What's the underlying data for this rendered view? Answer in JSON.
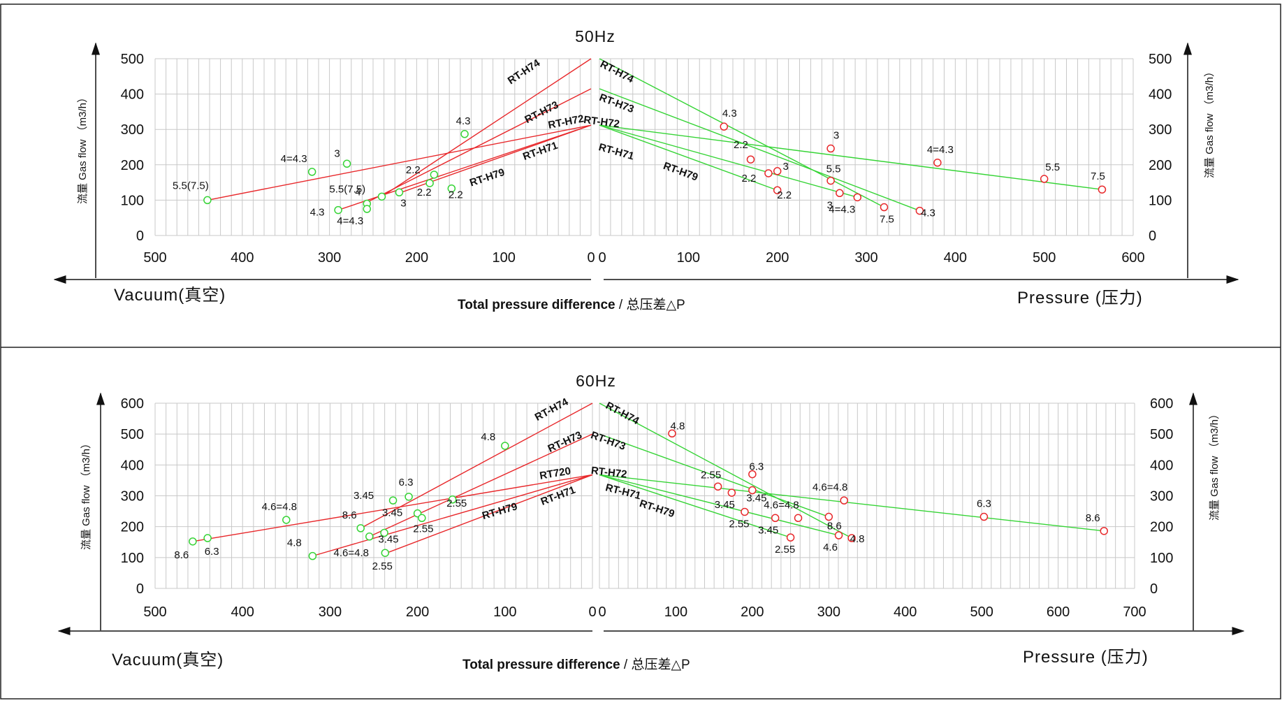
{
  "axis_text": {
    "ylabel": "流量 Gas flow （m3/h）",
    "vacuum": "Vacuum(真空)",
    "pressure": "Pressure (压力)",
    "total_bold": "Total pressure difference",
    "total_rest": " / 总压差△P"
  },
  "colors": {
    "vacuum": "#e8282b",
    "pressure": "#35d435",
    "marker_vac": "#36d436",
    "marker_pres": "#e8282b"
  },
  "chart_data": [
    {
      "type": "line",
      "title": "50Hz",
      "ylim": [
        0,
        500
      ],
      "yticks": [
        0,
        100,
        200,
        300,
        400,
        500
      ],
      "vacuum_ticks": [
        500,
        400,
        300,
        200,
        100,
        0
      ],
      "pressure_ticks": [
        0,
        100,
        200,
        300,
        400,
        500,
        600
      ],
      "vacuum_range": [
        500,
        0
      ],
      "pressure_range": [
        0,
        600
      ],
      "vacuum": {
        "lines": [
          {
            "name": "RT-H74",
            "points": [
              [
                0,
                500
              ],
              [
                240,
                110
              ]
            ],
            "label_at": [
              75,
              455
            ]
          },
          {
            "name": "RT-H73",
            "points": [
              [
                0,
                415
              ],
              [
                260,
                90
              ]
            ],
            "label_at": [
              55,
              340
            ]
          },
          {
            "name": "RT-H72",
            "points": [
              [
                0,
                312
              ],
              [
                440,
                100
              ]
            ],
            "label_at": [
              28,
              312
            ]
          },
          {
            "name": "RT-H71",
            "points": [
              [
                0,
                312
              ],
              [
                220,
                120
              ]
            ],
            "label_at": [
              57,
              230
            ]
          },
          {
            "name": "RT-H79",
            "points": [
              [
                0,
                312
              ],
              [
                290,
                72
              ]
            ],
            "label_at": [
              118,
              155
            ]
          }
        ],
        "points": [
          {
            "x": 440,
            "y": 100,
            "label": "5.5(7.5)",
            "dx": -24,
            "dy": -16
          },
          {
            "x": 320,
            "y": 180,
            "label": "4=4.3",
            "dx": -26,
            "dy": -14
          },
          {
            "x": 280,
            "y": 203,
            "label": "3",
            "dx": -14,
            "dy": -10
          },
          {
            "x": 145,
            "y": 287,
            "label": "4.3",
            "dx": -2,
            "dy": -14
          },
          {
            "x": 180,
            "y": 172,
            "label": "2.2",
            "dx": -30,
            "dy": -2
          },
          {
            "x": 257,
            "y": 90,
            "label": "5.5(7.5)",
            "dx": -28,
            "dy": -16
          },
          {
            "x": 240,
            "y": 110,
            "label": "4",
            "dx": -34,
            "dy": -2
          },
          {
            "x": 257,
            "y": 75,
            "label": "4=4.3",
            "dx": -24,
            "dy": 22
          },
          {
            "x": 290,
            "y": 72,
            "label": "4.3",
            "dx": -30,
            "dy": 8
          },
          {
            "x": 220,
            "y": 122,
            "label": "3",
            "dx": 6,
            "dy": 20
          },
          {
            "x": 185,
            "y": 148,
            "label": "2.2",
            "dx": -8,
            "dy": 18
          },
          {
            "x": 160,
            "y": 133,
            "label": "2.2",
            "dx": 6,
            "dy": 14
          }
        ]
      },
      "pressure": {
        "lines": [
          {
            "name": "RT-H74",
            "points": [
              [
                0,
                500
              ],
              [
                320,
                80
              ]
            ],
            "label_at": [
              18,
              455
            ]
          },
          {
            "name": "RT-H73",
            "points": [
              [
                0,
                415
              ],
              [
                360,
                70
              ]
            ],
            "label_at": [
              18,
              365
            ]
          },
          {
            "name": "RT-H72",
            "points": [
              [
                0,
                312
              ],
              [
                565,
                130
              ]
            ],
            "label_at": [
              2,
              312
            ]
          },
          {
            "name": "RT-H71",
            "points": [
              [
                0,
                312
              ],
              [
                290,
                108
              ]
            ],
            "label_at": [
              18,
              228
            ]
          },
          {
            "name": "RT-H79",
            "points": [
              [
                0,
                312
              ],
              [
                200,
                128
              ]
            ],
            "label_at": [
              90,
              172
            ]
          }
        ],
        "points": [
          {
            "x": 140,
            "y": 308,
            "label": "4.3",
            "dx": 8,
            "dy": -14
          },
          {
            "x": 260,
            "y": 246,
            "label": "3",
            "dx": 8,
            "dy": -14
          },
          {
            "x": 380,
            "y": 206,
            "label": "4=4.3",
            "dx": 4,
            "dy": -14
          },
          {
            "x": 500,
            "y": 160,
            "label": "5.5",
            "dx": 12,
            "dy": -12
          },
          {
            "x": 565,
            "y": 130,
            "label": "7.5",
            "dx": -6,
            "dy": -14
          },
          {
            "x": 170,
            "y": 215,
            "label": "2.2",
            "dx": -14,
            "dy": -16
          },
          {
            "x": 200,
            "y": 182,
            "label": "3",
            "dx": 12,
            "dy": -2
          },
          {
            "x": 190,
            "y": 176,
            "label": "2.2",
            "dx": -28,
            "dy": 12
          },
          {
            "x": 260,
            "y": 155,
            "label": "5.5",
            "dx": 4,
            "dy": -12
          },
          {
            "x": 200,
            "y": 128,
            "label": "2.2",
            "dx": 10,
            "dy": 12
          },
          {
            "x": 270,
            "y": 120,
            "label": "3",
            "dx": -14,
            "dy": 22
          },
          {
            "x": 290,
            "y": 108,
            "label": "4=4.3",
            "dx": -22,
            "dy": 22
          },
          {
            "x": 320,
            "y": 80,
            "label": "7.5",
            "dx": 4,
            "dy": 22
          },
          {
            "x": 360,
            "y": 70,
            "label": "4.3",
            "dx": 12,
            "dy": 8
          }
        ]
      }
    },
    {
      "type": "line",
      "title": "60Hz",
      "ylim": [
        0,
        600
      ],
      "yticks": [
        0,
        100,
        200,
        300,
        400,
        500,
        600
      ],
      "vacuum_ticks": [
        500,
        400,
        300,
        200,
        100,
        0
      ],
      "pressure_ticks": [
        0,
        100,
        200,
        300,
        400,
        500,
        600,
        700
      ],
      "vacuum_range": [
        500,
        0
      ],
      "pressure_range": [
        0,
        700
      ],
      "vacuum": {
        "lines": [
          {
            "name": "RT-H74",
            "points": [
              [
                0,
                600
              ],
              [
                265,
                195
              ]
            ],
            "label_at": [
              45,
              570
            ]
          },
          {
            "name": "RT-H73",
            "points": [
              [
                0,
                500
              ],
              [
                255,
                168
              ]
            ],
            "label_at": [
              30,
              465
            ]
          },
          {
            "name": "RT720",
            "points": [
              [
                0,
                368
              ],
              [
                457,
                152
              ]
            ],
            "label_at": [
              42,
              362
            ]
          },
          {
            "name": "RT-H71",
            "points": [
              [
                0,
                368
              ],
              [
                235,
                115
              ]
            ],
            "label_at": [
              38,
              290
            ]
          },
          {
            "name": "RT-H79",
            "points": [
              [
                0,
                368
              ],
              [
                320,
                105
              ]
            ],
            "label_at": [
              105,
              240
            ]
          }
        ],
        "points": [
          {
            "x": 457,
            "y": 152,
            "label": "8.6",
            "dx": -16,
            "dy": 24
          },
          {
            "x": 440,
            "y": 163,
            "label": "6.3",
            "dx": 6,
            "dy": 24
          },
          {
            "x": 350,
            "y": 222,
            "label": "4.6=4.8",
            "dx": -10,
            "dy": -14
          },
          {
            "x": 320,
            "y": 105,
            "label": "4.8",
            "dx": -26,
            "dy": -14
          },
          {
            "x": 100,
            "y": 462,
            "label": "4.8",
            "dx": -24,
            "dy": -8
          },
          {
            "x": 228,
            "y": 285,
            "label": "3.45",
            "dx": -42,
            "dy": -2
          },
          {
            "x": 210,
            "y": 297,
            "label": "6.3",
            "dx": -4,
            "dy": -16
          },
          {
            "x": 160,
            "y": 288,
            "label": "2.55",
            "dx": 6,
            "dy": 10
          },
          {
            "x": 265,
            "y": 195,
            "label": "8.6",
            "dx": -16,
            "dy": -14
          },
          {
            "x": 200,
            "y": 243,
            "label": "3.45",
            "dx": -36,
            "dy": 4
          },
          {
            "x": 195,
            "y": 228,
            "label": "2.55",
            "dx": 2,
            "dy": 20
          },
          {
            "x": 255,
            "y": 168,
            "label": "4.6=4.8",
            "dx": -26,
            "dy": 28
          },
          {
            "x": 238,
            "y": 180,
            "label": "3.45",
            "dx": 6,
            "dy": 14
          },
          {
            "x": 237,
            "y": 115,
            "label": "2.55",
            "dx": -4,
            "dy": 24
          }
        ]
      },
      "pressure": {
        "lines": [
          {
            "name": "RT-H74",
            "points": [
              [
                0,
                600
              ],
              [
                330,
                163
              ]
            ],
            "label_at": [
              28,
              558
            ]
          },
          {
            "name": "RT-H73",
            "points": [
              [
                0,
                500
              ],
              [
                300,
                232
              ]
            ],
            "label_at": [
              10,
              468
            ]
          },
          {
            "name": "RT-H72",
            "points": [
              [
                0,
                368
              ],
              [
                660,
                186
              ]
            ],
            "label_at": [
              12,
              365
            ]
          },
          {
            "name": "RT-H71",
            "points": [
              [
                0,
                368
              ],
              [
                313,
                172
              ]
            ],
            "label_at": [
              30,
              303
            ]
          },
          {
            "name": "RT-H79",
            "points": [
              [
                0,
                368
              ],
              [
                250,
                165
              ]
            ],
            "label_at": [
              74,
              248
            ]
          }
        ],
        "points": [
          {
            "x": 95,
            "y": 502,
            "label": "4.8",
            "dx": 8,
            "dy": -6
          },
          {
            "x": 200,
            "y": 370,
            "label": "6.3",
            "dx": 6,
            "dy": -6
          },
          {
            "x": 155,
            "y": 330,
            "label": "2.55",
            "dx": -10,
            "dy": -12
          },
          {
            "x": 173,
            "y": 310,
            "label": "3.45",
            "dx": -10,
            "dy": 22
          },
          {
            "x": 200,
            "y": 318,
            "label": "3.45",
            "dx": 6,
            "dy": 16
          },
          {
            "x": 320,
            "y": 285,
            "label": "4.6=4.8",
            "dx": -20,
            "dy": -14
          },
          {
            "x": 503,
            "y": 232,
            "label": "6.3",
            "dx": 0,
            "dy": -14
          },
          {
            "x": 660,
            "y": 186,
            "label": "8.6",
            "dx": -16,
            "dy": -14
          },
          {
            "x": 260,
            "y": 228,
            "label": "4.6=4.8",
            "dx": -24,
            "dy": -14
          },
          {
            "x": 300,
            "y": 232,
            "label": "8.6",
            "dx": 8,
            "dy": 18
          },
          {
            "x": 190,
            "y": 248,
            "label": "2.55",
            "dx": -8,
            "dy": 22
          },
          {
            "x": 230,
            "y": 228,
            "label": "3.45",
            "dx": -10,
            "dy": 22
          },
          {
            "x": 250,
            "y": 165,
            "label": "2.55",
            "dx": -8,
            "dy": 22
          },
          {
            "x": 313,
            "y": 172,
            "label": "4.6",
            "dx": -12,
            "dy": 22
          },
          {
            "x": 330,
            "y": 163,
            "label": "4.8",
            "dx": 8,
            "dy": 6
          }
        ]
      }
    }
  ]
}
